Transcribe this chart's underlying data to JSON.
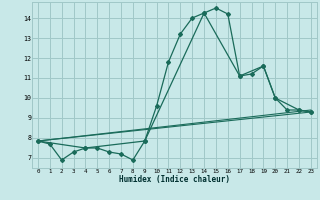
{
  "xlabel": "Humidex (Indice chaleur)",
  "background_color": "#c8e8e8",
  "grid_color": "#a0c8c8",
  "line_color": "#1a6b5a",
  "xlim": [
    -0.5,
    23.5
  ],
  "ylim": [
    6.5,
    14.8
  ],
  "xticks": [
    0,
    1,
    2,
    3,
    4,
    5,
    6,
    7,
    8,
    9,
    10,
    11,
    12,
    13,
    14,
    15,
    16,
    17,
    18,
    19,
    20,
    21,
    22,
    23
  ],
  "yticks": [
    7,
    8,
    9,
    10,
    11,
    12,
    13,
    14
  ],
  "series1_x": [
    0,
    1,
    2,
    3,
    4,
    5,
    6,
    7,
    8,
    9,
    10,
    11,
    12,
    13,
    14,
    15,
    16,
    17,
    18,
    19,
    20,
    21,
    22,
    23
  ],
  "series1_y": [
    7.85,
    7.7,
    6.9,
    7.3,
    7.5,
    7.5,
    7.3,
    7.2,
    6.9,
    7.85,
    9.6,
    11.8,
    13.2,
    14.0,
    14.25,
    14.5,
    14.2,
    11.1,
    11.2,
    11.6,
    10.0,
    9.4,
    9.4,
    9.3
  ],
  "series2_x": [
    0,
    4,
    9,
    14,
    17,
    19,
    20,
    22,
    23
  ],
  "series2_y": [
    7.85,
    7.5,
    7.85,
    14.25,
    11.1,
    11.6,
    10.0,
    9.4,
    9.3
  ],
  "series3_x": [
    0,
    23
  ],
  "series3_y": [
    7.85,
    9.3
  ],
  "series4_x": [
    0,
    23
  ],
  "series4_y": [
    7.85,
    9.4
  ]
}
